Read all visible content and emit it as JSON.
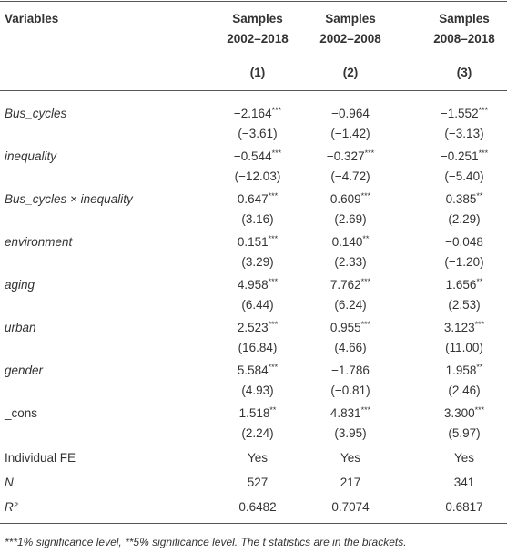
{
  "table": {
    "header": {
      "variables": "Variables",
      "columns": [
        [
          "Samples",
          "2002–2018"
        ],
        [
          "Samples",
          "2002–2008"
        ],
        [
          "Samples",
          "2008–2018"
        ]
      ],
      "numbers": [
        "(1)",
        "(2)",
        "(3)"
      ]
    },
    "rows": [
      {
        "name": "Bus_cycles",
        "italic": true,
        "cells": [
          {
            "coef": "−2.164",
            "stars": "***",
            "t": "(−3.61)"
          },
          {
            "coef": "−0.964",
            "stars": "",
            "t": "(−1.42)"
          },
          {
            "coef": "−1.552",
            "stars": "***",
            "t": "(−3.13)"
          }
        ]
      },
      {
        "name": "inequality",
        "italic": true,
        "cells": [
          {
            "coef": "−0.544",
            "stars": "***",
            "t": "(−12.03)"
          },
          {
            "coef": "−0.327",
            "stars": "***",
            "t": "(−4.72)"
          },
          {
            "coef": "−0.251",
            "stars": "***",
            "t": "(−5.40)"
          }
        ]
      },
      {
        "name": "Bus_cycles × inequality",
        "italic": true,
        "cells": [
          {
            "coef": "0.647",
            "stars": "***",
            "t": "(3.16)"
          },
          {
            "coef": "0.609",
            "stars": "***",
            "t": "(2.69)"
          },
          {
            "coef": "0.385",
            "stars": "**",
            "t": "(2.29)"
          }
        ]
      },
      {
        "name": "environment",
        "italic": true,
        "cells": [
          {
            "coef": "0.151",
            "stars": "***",
            "t": "(3.29)"
          },
          {
            "coef": "0.140",
            "stars": "**",
            "t": "(2.33)"
          },
          {
            "coef": "−0.048",
            "stars": "",
            "t": "(−1.20)"
          }
        ]
      },
      {
        "name": "aging",
        "italic": true,
        "cells": [
          {
            "coef": "4.958",
            "stars": "***",
            "t": "(6.44)"
          },
          {
            "coef": "7.762",
            "stars": "***",
            "t": "(6.24)"
          },
          {
            "coef": "1.656",
            "stars": "**",
            "t": "(2.53)"
          }
        ]
      },
      {
        "name": "urban",
        "italic": true,
        "cells": [
          {
            "coef": "2.523",
            "stars": "***",
            "t": "(16.84)"
          },
          {
            "coef": "0.955",
            "stars": "***",
            "t": "(4.66)"
          },
          {
            "coef": "3.123",
            "stars": "***",
            "t": "(11.00)"
          }
        ]
      },
      {
        "name": "gender",
        "italic": true,
        "cells": [
          {
            "coef": "5.584",
            "stars": "***",
            "t": "(4.93)"
          },
          {
            "coef": "−1.786",
            "stars": "",
            "t": "(−0.81)"
          },
          {
            "coef": "1.958",
            "stars": "**",
            "t": "(2.46)"
          }
        ]
      },
      {
        "name": "_cons",
        "italic": false,
        "cells": [
          {
            "coef": "1.518",
            "stars": "**",
            "t": "(2.24)"
          },
          {
            "coef": "4.831",
            "stars": "***",
            "t": "(3.95)"
          },
          {
            "coef": "3.300",
            "stars": "***",
            "t": "(5.97)"
          }
        ]
      }
    ],
    "stats": [
      {
        "name": "Individual FE",
        "italic": false,
        "values": [
          "Yes",
          "Yes",
          "Yes"
        ]
      },
      {
        "name": "N",
        "italic": true,
        "values": [
          "527",
          "217",
          "341"
        ]
      },
      {
        "name": "R²",
        "italic": true,
        "values": [
          "0.6482",
          "0.7074",
          "0.6817"
        ]
      }
    ],
    "footnote": "***1% significance level, **5% significance level. The t statistics are in the brackets."
  }
}
